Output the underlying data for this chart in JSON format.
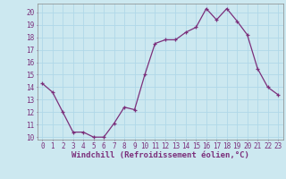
{
  "x": [
    0,
    1,
    2,
    3,
    4,
    5,
    6,
    7,
    8,
    9,
    10,
    11,
    12,
    13,
    14,
    15,
    16,
    17,
    18,
    19,
    20,
    21,
    22,
    23
  ],
  "y": [
    14.3,
    13.6,
    12.0,
    10.4,
    10.4,
    10.0,
    10.0,
    11.1,
    12.4,
    12.2,
    15.0,
    17.5,
    17.8,
    17.8,
    18.4,
    18.8,
    20.3,
    19.4,
    20.3,
    19.3,
    18.2,
    15.5,
    14.0,
    13.4
  ],
  "line_color": "#7b2f7b",
  "marker": "+",
  "marker_color": "#7b2f7b",
  "bg_color": "#cce8f0",
  "grid_color": "#b0d8e8",
  "xlabel": "Windchill (Refroidissement éolien,°C)",
  "xlim": [
    -0.5,
    23.5
  ],
  "ylim": [
    9.8,
    20.7
  ],
  "yticks": [
    10,
    11,
    12,
    13,
    14,
    15,
    16,
    17,
    18,
    19,
    20
  ],
  "xticks": [
    0,
    1,
    2,
    3,
    4,
    5,
    6,
    7,
    8,
    9,
    10,
    11,
    12,
    13,
    14,
    15,
    16,
    17,
    18,
    19,
    20,
    21,
    22,
    23
  ],
  "tick_color": "#7b2f7b",
  "label_color": "#7b2f7b",
  "label_fontsize": 6.5,
  "tick_fontsize": 5.5,
  "axis_color": "#888888",
  "linewidth": 0.9,
  "markersize": 3.0
}
